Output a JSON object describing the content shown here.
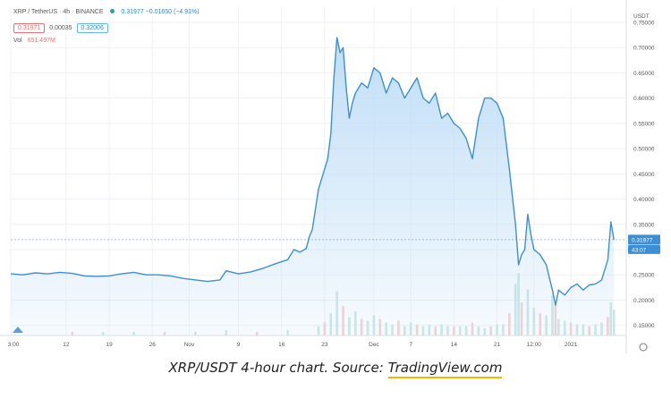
{
  "header": {
    "symbol_line": "XRP / TetherUS · 4h · BINANCE",
    "price_line": "0.31977 −0.01650 (−4.91%)",
    "bid": "0.31971",
    "spread": "0.00035",
    "ask": "0.32006",
    "vol_label": "Vol",
    "vol_value": "651.497M"
  },
  "axis": {
    "currency": "USDT"
  },
  "caption": {
    "prefix": "XRP/USDT 4-hour chart. Source: ",
    "source": "TradingView.com"
  },
  "colors": {
    "line": "#3c8fd6",
    "fill_top": "#bcdcf6",
    "grid": "#eef1f5",
    "vol_green": "#c9e7e3",
    "vol_red": "#f6cfcf",
    "axis_text": "#555555"
  },
  "chart_data": {
    "type": "area",
    "title": "XRP / TetherUS · 4h · BINANCE",
    "ylim": [
      0.13,
      0.78
    ],
    "y_ticks": [
      0.15,
      0.2,
      0.25,
      0.3,
      0.35,
      0.4,
      0.45,
      0.5,
      0.55,
      0.6,
      0.65,
      0.7,
      0.75
    ],
    "y_tick_labels": [
      "0.15000",
      "0.20000",
      "0.25000",
      "0.30000",
      "0.35000",
      "0.40000",
      "0.45000",
      "0.50000",
      "0.55000",
      "0.60000",
      "0.65000",
      "0.70000",
      "0.75000"
    ],
    "x_ticks": [
      {
        "label": "3:00",
        "x": 0
      },
      {
        "label": "12",
        "x": 9
      },
      {
        "label": "19",
        "x": 16
      },
      {
        "label": "26",
        "x": 23
      },
      {
        "label": "Nov",
        "x": 29
      },
      {
        "label": "9",
        "x": 37
      },
      {
        "label": "16",
        "x": 44
      },
      {
        "label": "23",
        "x": 51
      },
      {
        "label": "Dec",
        "x": 59
      },
      {
        "label": "7",
        "x": 65
      },
      {
        "label": "14",
        "x": 72
      },
      {
        "label": "21",
        "x": 79
      },
      {
        "label": "12:00",
        "x": 85
      },
      {
        "label": "2021",
        "x": 91
      }
    ],
    "xlim": [
      0,
      100
    ],
    "last_price": 0.31977,
    "last_price_label": "0.31977",
    "countdown_label": "43:07",
    "series": [
      {
        "values": [
          [
            0,
            0.252
          ],
          [
            2,
            0.25
          ],
          [
            4,
            0.254
          ],
          [
            6,
            0.252
          ],
          [
            8,
            0.255
          ],
          [
            10,
            0.253
          ],
          [
            12,
            0.248
          ],
          [
            14,
            0.247
          ],
          [
            16,
            0.248
          ],
          [
            18,
            0.252
          ],
          [
            20,
            0.255
          ],
          [
            22,
            0.25
          ],
          [
            24,
            0.25
          ],
          [
            26,
            0.248
          ],
          [
            28,
            0.243
          ],
          [
            30,
            0.24
          ],
          [
            32,
            0.237
          ],
          [
            34,
            0.24
          ],
          [
            35,
            0.258
          ],
          [
            37,
            0.252
          ],
          [
            39,
            0.256
          ],
          [
            41,
            0.263
          ],
          [
            43,
            0.272
          ],
          [
            45,
            0.28
          ],
          [
            46,
            0.3
          ],
          [
            47,
            0.295
          ],
          [
            48,
            0.302
          ],
          [
            48.5,
            0.325
          ],
          [
            49,
            0.34
          ],
          [
            50,
            0.42
          ],
          [
            51,
            0.46
          ],
          [
            51.5,
            0.48
          ],
          [
            52,
            0.53
          ],
          [
            52.5,
            0.64
          ],
          [
            53,
            0.72
          ],
          [
            53.5,
            0.69
          ],
          [
            54,
            0.7
          ],
          [
            54.5,
            0.62
          ],
          [
            55,
            0.56
          ],
          [
            55.5,
            0.59
          ],
          [
            56,
            0.61
          ],
          [
            57,
            0.63
          ],
          [
            58,
            0.62
          ],
          [
            59,
            0.66
          ],
          [
            60,
            0.65
          ],
          [
            61,
            0.61
          ],
          [
            62,
            0.64
          ],
          [
            63,
            0.63
          ],
          [
            64,
            0.6
          ],
          [
            65,
            0.62
          ],
          [
            66,
            0.64
          ],
          [
            67,
            0.6
          ],
          [
            68,
            0.59
          ],
          [
            69,
            0.61
          ],
          [
            70,
            0.56
          ],
          [
            71,
            0.57
          ],
          [
            72,
            0.55
          ],
          [
            73,
            0.54
          ],
          [
            74,
            0.52
          ],
          [
            75,
            0.48
          ],
          [
            76,
            0.56
          ],
          [
            77,
            0.6
          ],
          [
            78,
            0.6
          ],
          [
            79,
            0.59
          ],
          [
            80,
            0.56
          ],
          [
            81,
            0.46
          ],
          [
            82,
            0.35
          ],
          [
            82.5,
            0.27
          ],
          [
            83,
            0.29
          ],
          [
            83.5,
            0.3
          ],
          [
            84,
            0.37
          ],
          [
            84.5,
            0.33
          ],
          [
            85,
            0.3
          ],
          [
            86,
            0.29
          ],
          [
            87,
            0.27
          ],
          [
            88,
            0.22
          ],
          [
            88.5,
            0.19
          ],
          [
            89,
            0.22
          ],
          [
            90,
            0.21
          ],
          [
            91,
            0.225
          ],
          [
            92,
            0.232
          ],
          [
            93,
            0.22
          ],
          [
            94,
            0.23
          ],
          [
            95,
            0.232
          ],
          [
            96,
            0.24
          ],
          [
            97,
            0.28
          ],
          [
            97.5,
            0.355
          ],
          [
            98,
            0.31977
          ]
        ]
      }
    ],
    "volume": [
      [
        50,
        0.05
      ],
      [
        51,
        0.07
      ],
      [
        52,
        0.12
      ],
      [
        53,
        0.24
      ],
      [
        54,
        0.16
      ],
      [
        55,
        0.1
      ],
      [
        56,
        0.13
      ],
      [
        57,
        0.09
      ],
      [
        58,
        0.08
      ],
      [
        59,
        0.11
      ],
      [
        60,
        0.09
      ],
      [
        61,
        0.07
      ],
      [
        62,
        0.06
      ],
      [
        63,
        0.08
      ],
      [
        64,
        0.05
      ],
      [
        65,
        0.07
      ],
      [
        66,
        0.06
      ],
      [
        67,
        0.05
      ],
      [
        68,
        0.06
      ],
      [
        69,
        0.05
      ],
      [
        70,
        0.06
      ],
      [
        71,
        0.05
      ],
      [
        72,
        0.05
      ],
      [
        73,
        0.05
      ],
      [
        74,
        0.05
      ],
      [
        75,
        0.07
      ],
      [
        76,
        0.05
      ],
      [
        77,
        0.04
      ],
      [
        78,
        0.05
      ],
      [
        79,
        0.06
      ],
      [
        80,
        0.06
      ],
      [
        81,
        0.12
      ],
      [
        82,
        0.28
      ],
      [
        82.5,
        0.34
      ],
      [
        83,
        0.18
      ],
      [
        84,
        0.25
      ],
      [
        85,
        0.15
      ],
      [
        86,
        0.12
      ],
      [
        87,
        0.11
      ],
      [
        88,
        0.22
      ],
      [
        88.5,
        0.18
      ],
      [
        89,
        0.09
      ],
      [
        90,
        0.08
      ],
      [
        91,
        0.07
      ],
      [
        92,
        0.06
      ],
      [
        93,
        0.06
      ],
      [
        94,
        0.05
      ],
      [
        95,
        0.06
      ],
      [
        96,
        0.07
      ],
      [
        97,
        0.1
      ],
      [
        97.5,
        0.18
      ],
      [
        98,
        0.14
      ],
      [
        10,
        0.02
      ],
      [
        15,
        0.02
      ],
      [
        20,
        0.02
      ],
      [
        25,
        0.02
      ],
      [
        30,
        0.02
      ],
      [
        35,
        0.03
      ],
      [
        40,
        0.02
      ],
      [
        45,
        0.03
      ]
    ]
  }
}
